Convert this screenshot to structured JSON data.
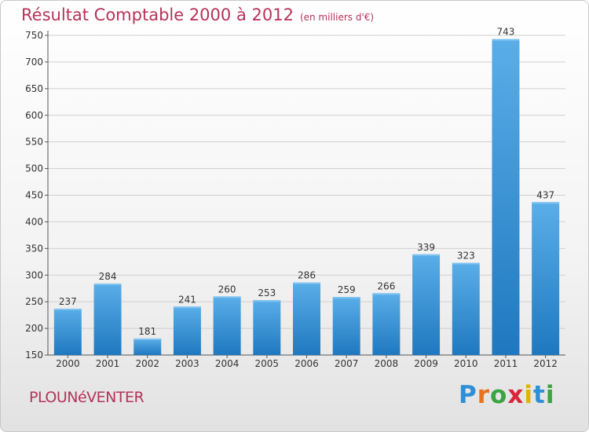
{
  "header": {
    "title": "Résultat Comptable 2000 à 2012",
    "subtitle": "(en milliers d'€)"
  },
  "footer": {
    "commune": "PLOUNéVENTER",
    "logo_letters": [
      "P",
      "r",
      "o",
      "x",
      "i",
      "t",
      "i"
    ],
    "logo_colors": [
      "#2f8fd6",
      "#e8731c",
      "#3aa541",
      "#d8263a",
      "#e0b400",
      "#2f8fd6",
      "#3aa541"
    ]
  },
  "chart_data": {
    "type": "bar",
    "categories": [
      "2000",
      "2001",
      "2002",
      "2003",
      "2004",
      "2005",
      "2006",
      "2007",
      "2008",
      "2009",
      "2010",
      "2011",
      "2012"
    ],
    "values": [
      237,
      284,
      181,
      241,
      260,
      253,
      286,
      259,
      266,
      339,
      323,
      743,
      437
    ],
    "title": "Résultat Comptable 2000 à 2012",
    "subtitle": "(en milliers d'€)",
    "xlabel": "",
    "ylabel": "",
    "ylim": [
      150,
      750
    ],
    "yticks": [
      150,
      200,
      250,
      300,
      350,
      400,
      450,
      500,
      550,
      600,
      650,
      700,
      750
    ],
    "grid": true,
    "bar_color_top": "#5aaee8",
    "bar_color_bottom": "#1f78bf"
  }
}
